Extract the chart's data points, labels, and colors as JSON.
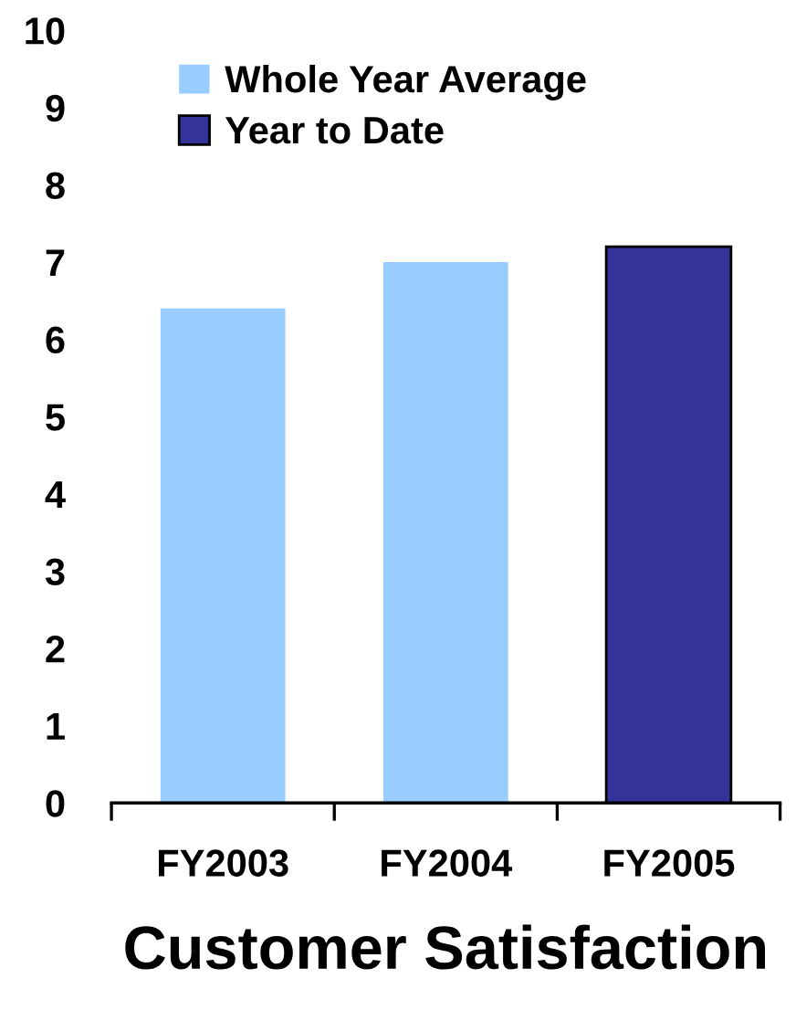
{
  "chart_data": {
    "type": "bar",
    "xlabel": "Customer Satisfaction",
    "categories": [
      "FY2003",
      "FY2004",
      "FY2005"
    ],
    "series": [
      {
        "name": "Whole Year Average",
        "color": "#99ccff",
        "values": [
          6.4,
          7.0,
          null
        ]
      },
      {
        "name": "Year to Date",
        "color": "#333399",
        "values": [
          null,
          null,
          7.2
        ]
      }
    ],
    "ylim": [
      0,
      10
    ],
    "yticks": [
      0,
      1,
      2,
      3,
      4,
      5,
      6,
      7,
      8,
      9,
      10
    ],
    "grid": false,
    "legend": "top left"
  }
}
